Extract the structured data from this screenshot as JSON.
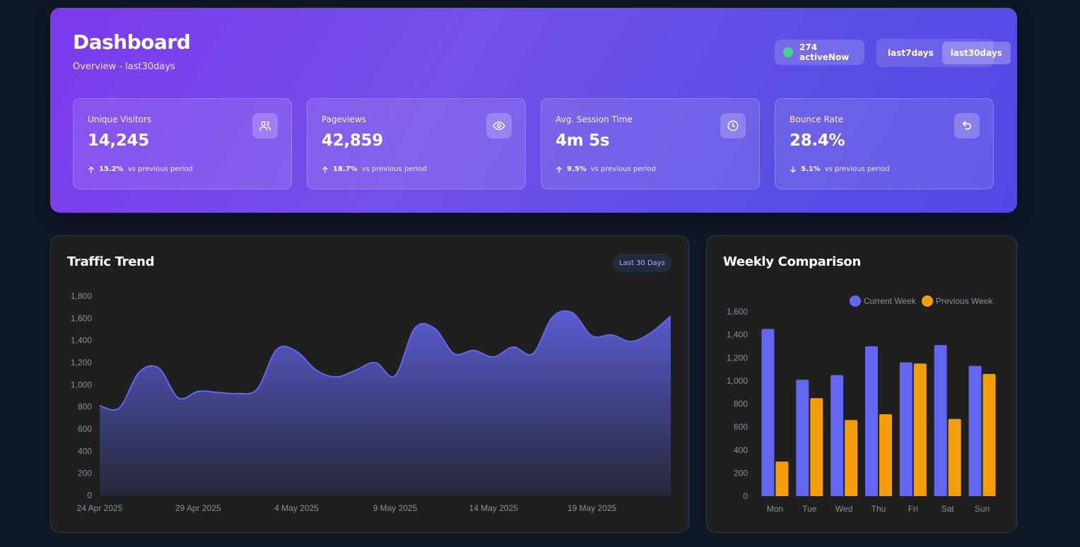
{
  "header": {
    "title": "Dashboard",
    "subtitle": "Overview - last30days",
    "active_now": "274 activeNow",
    "period_options": [
      "last7days",
      "last30days"
    ],
    "selected_period": "last30days"
  },
  "kpis": [
    {
      "label": "Unique Visitors",
      "value": "14,245",
      "change": "15.2%",
      "direction": "up",
      "compare": "vs previous period",
      "icon": "users-icon"
    },
    {
      "label": "Pageviews",
      "value": "42,859",
      "change": "18.7%",
      "direction": "up",
      "compare": "vs previous period",
      "icon": "eye-icon"
    },
    {
      "label": "Avg. Session Time",
      "value": "4m 5s",
      "change": "9.5%",
      "direction": "up",
      "compare": "vs previous period",
      "icon": "clock-icon"
    },
    {
      "label": "Bounce Rate",
      "value": "28.4%",
      "change": "5.1%",
      "direction": "down",
      "compare": "vs previous period",
      "icon": "undo-icon"
    }
  ],
  "traffic": {
    "title": "Traffic Trend",
    "badge": "Last 30 Days"
  },
  "weekly": {
    "title": "Weekly Comparison"
  },
  "colors": {
    "accent": "#6366f1",
    "secondary": "#f59e0b",
    "active": "#3ed68a"
  },
  "chart_data": [
    {
      "type": "area",
      "title": "Traffic Trend",
      "x": [
        "24 Apr 2025",
        "25 Apr 2025",
        "26 Apr 2025",
        "27 Apr 2025",
        "28 Apr 2025",
        "29 Apr 2025",
        "30 Apr 2025",
        "1 May 2025",
        "2 May 2025",
        "3 May 2025",
        "4 May 2025",
        "5 May 2025",
        "6 May 2025",
        "7 May 2025",
        "8 May 2025",
        "9 May 2025",
        "10 May 2025",
        "11 May 2025",
        "12 May 2025",
        "13 May 2025",
        "14 May 2025",
        "15 May 2025",
        "16 May 2025",
        "17 May 2025",
        "18 May 2025",
        "19 May 2025",
        "20 May 2025",
        "21 May 2025",
        "22 May 2025",
        "23 May 2025"
      ],
      "tick_labels": [
        "24 Apr 2025",
        "29 Apr 2025",
        "4 May 2025",
        "9 May 2025",
        "14 May 2025",
        "19 May 2025"
      ],
      "series": [
        {
          "values": [
            810,
            790,
            1110,
            1150,
            880,
            940,
            930,
            920,
            960,
            1320,
            1300,
            1130,
            1070,
            1130,
            1200,
            1080,
            1510,
            1510,
            1280,
            1310,
            1250,
            1340,
            1280,
            1610,
            1650,
            1440,
            1450,
            1390,
            1470,
            1620
          ]
        }
      ],
      "ylim": [
        0,
        1800
      ],
      "yticks": [
        0,
        200,
        400,
        600,
        800,
        1000,
        1200,
        1400,
        1600,
        1800
      ],
      "grid": false
    },
    {
      "type": "bar",
      "title": "Weekly Comparison",
      "categories": [
        "Mon",
        "Tue",
        "Wed",
        "Thu",
        "Fri",
        "Sat",
        "Sun"
      ],
      "series": [
        {
          "name": "Current Week",
          "values": [
            1450,
            1010,
            1050,
            1300,
            1160,
            1310,
            1130
          ],
          "color": "#6366f1"
        },
        {
          "name": "Previous Week",
          "values": [
            300,
            850,
            660,
            710,
            1150,
            670,
            1060
          ],
          "color": "#f59e0b"
        }
      ],
      "ylim": [
        0,
        1600
      ],
      "yticks": [
        0,
        200,
        400,
        600,
        800,
        1000,
        1200,
        1400,
        1600
      ],
      "legend": "top-right",
      "grid": false
    }
  ]
}
